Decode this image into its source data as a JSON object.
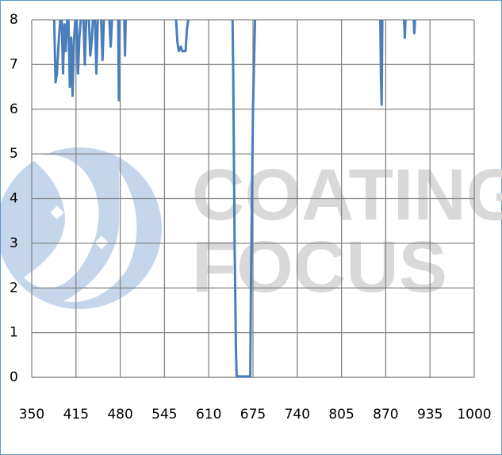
{
  "chart_data": {
    "type": "line",
    "x": [
      383,
      385,
      387,
      390,
      392,
      393,
      394,
      396,
      398,
      400,
      402,
      403,
      404,
      406,
      408,
      410,
      412,
      414,
      415,
      416,
      418,
      420,
      422,
      424,
      426,
      428,
      430,
      432,
      434,
      436,
      438,
      440,
      441,
      443,
      445,
      447,
      448,
      452,
      454,
      456,
      457,
      464,
      466,
      468,
      469,
      477,
      478,
      479,
      480,
      486,
      487,
      488,
      500,
      562,
      564,
      566,
      569,
      571,
      576,
      578,
      580,
      600,
      645,
      646,
      648,
      650,
      651,
      660,
      671,
      672,
      675,
      678,
      700,
      862,
      863,
      864,
      865,
      880,
      897,
      898,
      899,
      905,
      911,
      912,
      913
    ],
    "values": [
      8,
      6.6,
      6.8,
      7.6,
      8,
      null,
      8,
      6.8,
      7.9,
      7.3,
      8,
      null,
      8,
      6.5,
      7.6,
      6.3,
      7.5,
      8,
      null,
      8,
      6.8,
      7.6,
      8,
      null,
      8,
      7.0,
      8,
      null,
      8,
      7.2,
      7.5,
      8,
      null,
      8,
      6.8,
      8,
      null,
      8,
      7.1,
      8,
      null,
      8,
      7.4,
      8,
      null,
      8,
      6.2,
      8,
      null,
      8,
      7.2,
      8,
      null,
      8,
      7.5,
      7.3,
      7.4,
      7.3,
      7.3,
      7.8,
      8,
      null,
      8,
      6.8,
      3,
      0.6,
      0.02,
      0.02,
      0.02,
      2,
      6,
      8,
      null,
      8,
      6.7,
      6.1,
      8,
      null,
      8,
      7.6,
      8,
      null,
      8,
      7.7,
      8
    ],
    "color": "#4a7ebb",
    "xlim": [
      350,
      1000
    ],
    "xticks": [
      350,
      415,
      480,
      545,
      610,
      675,
      740,
      805,
      870,
      935,
      1000
    ],
    "ylim": [
      0,
      8
    ],
    "yticks": [
      0,
      1,
      2,
      3,
      4,
      5,
      6,
      7,
      8
    ],
    "grid": true
  },
  "watermark": {
    "line1": "COATING",
    "line2": "FOCUS"
  }
}
